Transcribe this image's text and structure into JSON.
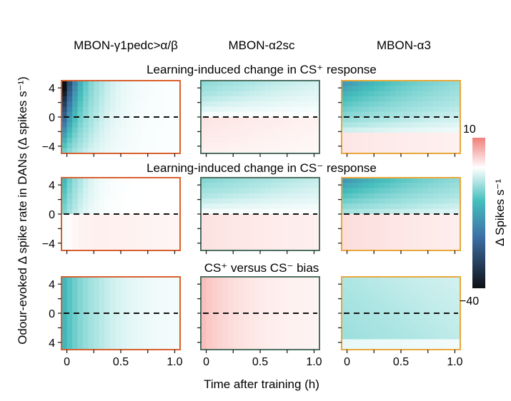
{
  "chart_data": {
    "type": "heatmap",
    "column_titles": [
      "MBON-γ1pedc>α/β",
      "MBON-α2sc",
      "MBON-α3"
    ],
    "row_titles": [
      "Learning-induced change in CS⁺ response",
      "Learning-induced change in CS⁻ response",
      "CS⁺ versus CS⁻ bias"
    ],
    "xlabel": "Time after training (h)",
    "ylabel": "Odour-evoked Δ spike rate in DANs (Δ spikes s⁻¹)",
    "x_ticks": [
      "0",
      "0.5",
      "1.0"
    ],
    "x_tick_values": [
      0,
      0.5,
      1.0
    ],
    "xlim": [
      -0.05,
      1.05
    ],
    "y_ticks_rows_1_2": [
      "4",
      "0",
      "−4"
    ],
    "y_ticks_row_3": [
      "4",
      "0",
      "4"
    ],
    "ylim": [
      -5,
      5
    ],
    "dashed_reference_y": 0,
    "colorbar": {
      "label": "Δ Spikes s⁻¹",
      "max_label": "10",
      "min_label": "−40",
      "range": [
        -40,
        10
      ]
    },
    "panel_border_colors": [
      "#d9602e",
      "#4e7062",
      "#e9a83a"
    ],
    "colors": {
      "positive": "#f07f7b",
      "zero": "#ffffff",
      "mid_negative": "#47c0bf",
      "deep_negative": "#2d4f80",
      "min": "#0f1519"
    },
    "panels": [
      [
        {
          "pattern": "gamma_cs_plus",
          "description_levels": [
            -30,
            -15,
            -8,
            -3,
            -1,
            0
          ]
        },
        {
          "pattern": "a2_cs_plus",
          "description_levels": [
            -6,
            2
          ]
        },
        {
          "pattern": "a3_cs_plus",
          "description_levels": [
            -22,
            -8,
            2
          ]
        }
      ],
      [
        {
          "pattern": "gamma_cs_minus",
          "description_levels": [
            -10,
            2
          ]
        },
        {
          "pattern": "a2_cs_minus",
          "description_levels": [
            -7,
            2
          ]
        },
        {
          "pattern": "a3_cs_minus",
          "description_levels": [
            -14,
            3
          ]
        }
      ],
      [
        {
          "pattern": "gamma_bias",
          "description_levels": [
            -12,
            -1
          ]
        },
        {
          "pattern": "a2_bias",
          "description_levels": [
            4,
            1
          ]
        },
        {
          "pattern": "a3_bias",
          "description_levels": [
            -6,
            -2
          ]
        }
      ]
    ]
  }
}
